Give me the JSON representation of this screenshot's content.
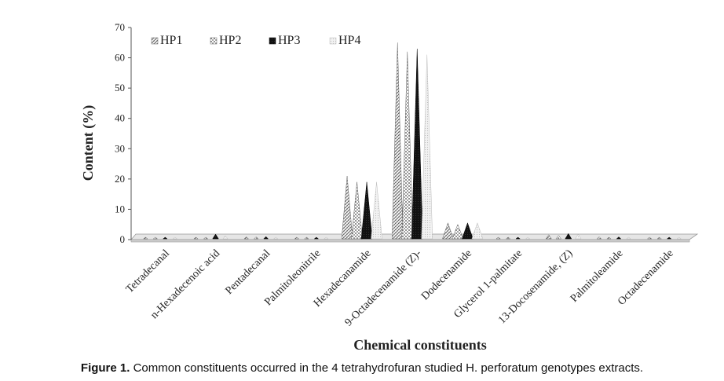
{
  "chart_data": {
    "type": "bar",
    "title": "",
    "xlabel": "Chemical constituents",
    "ylabel": "Content (%)",
    "ylim": [
      0,
      70
    ],
    "yticks": [
      "0",
      "10",
      "20",
      "30",
      "40",
      "50",
      "60",
      "70"
    ],
    "grid": false,
    "legend_position": "top-left",
    "categories": [
      "Tetradecanal",
      "n-Hexadecenoic acid",
      "Pentadecanal",
      "Palmitoleonitrile",
      "Hexadecanamide",
      "9-Octadecenamide (Z)-",
      "Dodecenamide",
      "Glycerol 1-palmitate",
      "13-Docosenamide, (Z)",
      "Palmitoleamide",
      "Octadecenamide"
    ],
    "series": [
      {
        "name": "HP1",
        "values": [
          0.3,
          0.6,
          0.9,
          0.3,
          21,
          65,
          5.5,
          0.3,
          1.6,
          0.9,
          0.3
        ]
      },
      {
        "name": "HP2",
        "values": [
          0.3,
          0.6,
          0.9,
          0.3,
          19,
          62,
          5.0,
          0.3,
          1.4,
          0.6,
          0.3
        ]
      },
      {
        "name": "HP3",
        "values": [
          0.3,
          1.8,
          1.0,
          0.3,
          19,
          63,
          5.5,
          0.3,
          2.0,
          0.9,
          0.3
        ]
      },
      {
        "name": "HP4",
        "values": [
          0.3,
          1.2,
          0.6,
          0.3,
          19,
          61,
          5.5,
          0.3,
          1.8,
          0.6,
          0.3
        ]
      }
    ]
  },
  "caption": {
    "label": "Figure 1.",
    "text": " Common constituents occurred in the 4 tetrahydrofuran studied H. perforatum genotypes extracts."
  }
}
